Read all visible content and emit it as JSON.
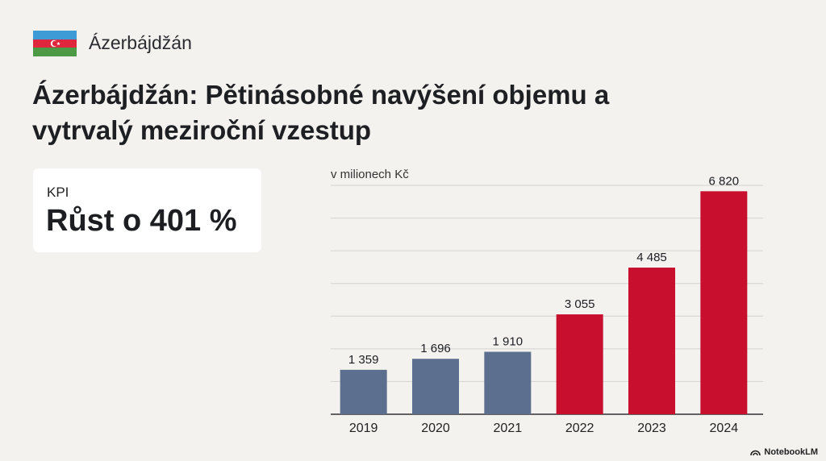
{
  "header": {
    "country": "Ázerbájdžán",
    "title": "Ázerbájdžán: Pětinásobné navýšení objemu a vytrvalý meziroční vzestup"
  },
  "flag": {
    "colors": [
      "#3f9bd6",
      "#e0263c",
      "#4c9a45"
    ]
  },
  "kpi": {
    "label": "KPI",
    "value": "Růst o 401 %"
  },
  "chart_data": {
    "type": "bar",
    "ylabel": "v milionech Kč",
    "categories": [
      "2019",
      "2020",
      "2021",
      "2022",
      "2023",
      "2024"
    ],
    "values": [
      1359,
      1696,
      1910,
      3055,
      4485,
      6820
    ],
    "value_labels": [
      "1 359",
      "1 696",
      "1 910",
      "3 055",
      "4 485",
      "6 820"
    ],
    "bar_colors": [
      "#5c6f8e",
      "#5c6f8e",
      "#5c6f8e",
      "#c8102e",
      "#c8102e",
      "#c8102e"
    ],
    "ylim": [
      0,
      7000
    ],
    "grid": true
  },
  "watermark": {
    "text": "NotebookLM"
  }
}
